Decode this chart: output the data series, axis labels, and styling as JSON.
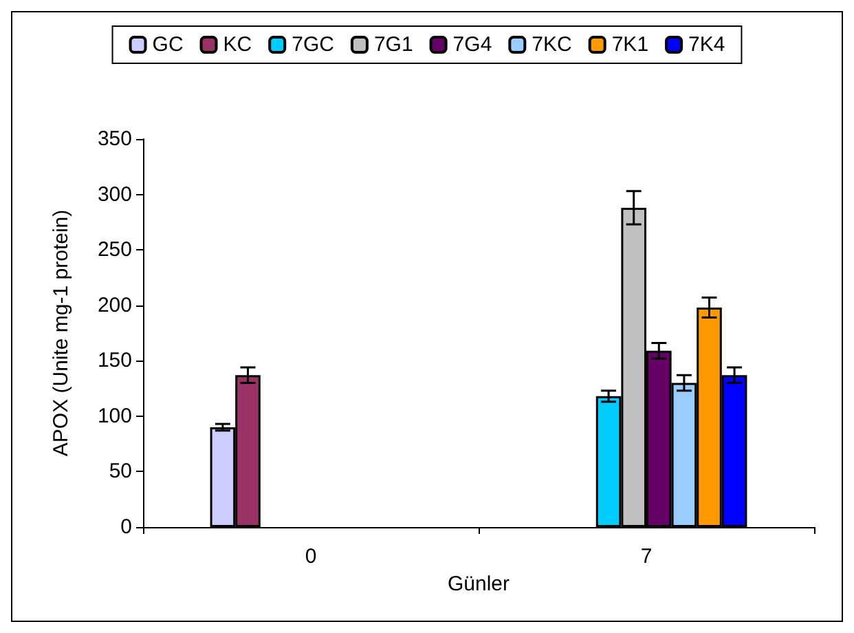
{
  "chart_data": {
    "type": "bar",
    "xlabel": "Günler",
    "ylabel": "APOX (Unite mg-1 protein)",
    "categories": [
      "0",
      "7"
    ],
    "series": [
      {
        "name": "GC",
        "color": "#ccccff",
        "values": [
          90,
          null
        ],
        "errors": [
          3,
          null
        ]
      },
      {
        "name": "KC",
        "color": "#993366",
        "values": [
          137,
          null
        ],
        "errors": [
          7,
          null
        ]
      },
      {
        "name": "7GC",
        "color": "#00ccff",
        "values": [
          null,
          118
        ],
        "errors": [
          null,
          5
        ]
      },
      {
        "name": "7G1",
        "color": "#c0c0c0",
        "values": [
          null,
          288
        ],
        "errors": [
          null,
          15
        ]
      },
      {
        "name": "7G4",
        "color": "#660066",
        "values": [
          null,
          159
        ],
        "errors": [
          null,
          7
        ]
      },
      {
        "name": "7KC",
        "color": "#99ccff",
        "values": [
          null,
          130
        ],
        "errors": [
          null,
          7
        ]
      },
      {
        "name": "7K1",
        "color": "#ff9900",
        "values": [
          null,
          198
        ],
        "errors": [
          null,
          9
        ]
      },
      {
        "name": "7K4",
        "color": "#0000ff",
        "values": [
          null,
          137
        ],
        "errors": [
          null,
          7
        ]
      }
    ],
    "ylim": [
      0,
      350
    ],
    "yticks": [
      0,
      50,
      100,
      150,
      200,
      250,
      300,
      350
    ],
    "grid": false,
    "legend": "top"
  }
}
